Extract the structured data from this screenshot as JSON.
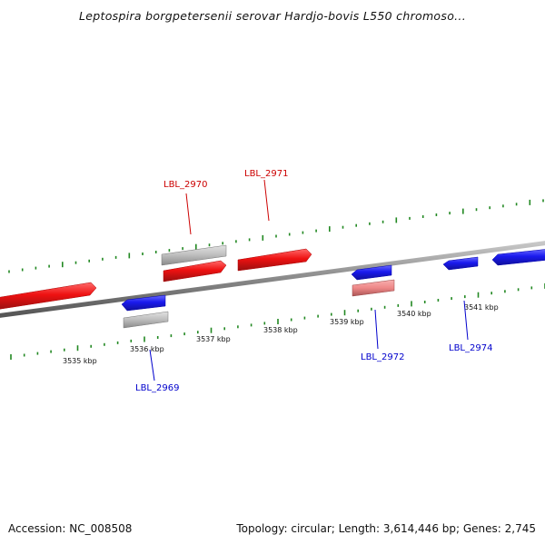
{
  "title": "Leptospira borgpetersenii serovar Hardjo-bovis L550 chromoso...",
  "footer": {
    "accession": "Accession: NC_008508",
    "topology": "Topology: circular; Length: 3,614,446 bp; Genes: 2,745"
  },
  "colors": {
    "forward_gene": "#ee1111",
    "reverse_gene": "#1a1aee",
    "pseudo_gene": "#b8b8b8",
    "light_red_gene": "#ee8888",
    "tick": "#228822",
    "backbone": "#888888",
    "forward_label": "#cc0000",
    "reverse_label": "#0000cc"
  },
  "kbp_labels": [
    "3535 kbp",
    "3536 kbp",
    "3537 kbp",
    "3538 kbp",
    "3539 kbp",
    "3540 kbp",
    "3541 kbp"
  ],
  "gene_labels": {
    "forward": [
      "LBL_2970",
      "LBL_2971"
    ],
    "reverse": [
      "LBL_2969",
      "LBL_2972",
      "LBL_2974"
    ]
  }
}
